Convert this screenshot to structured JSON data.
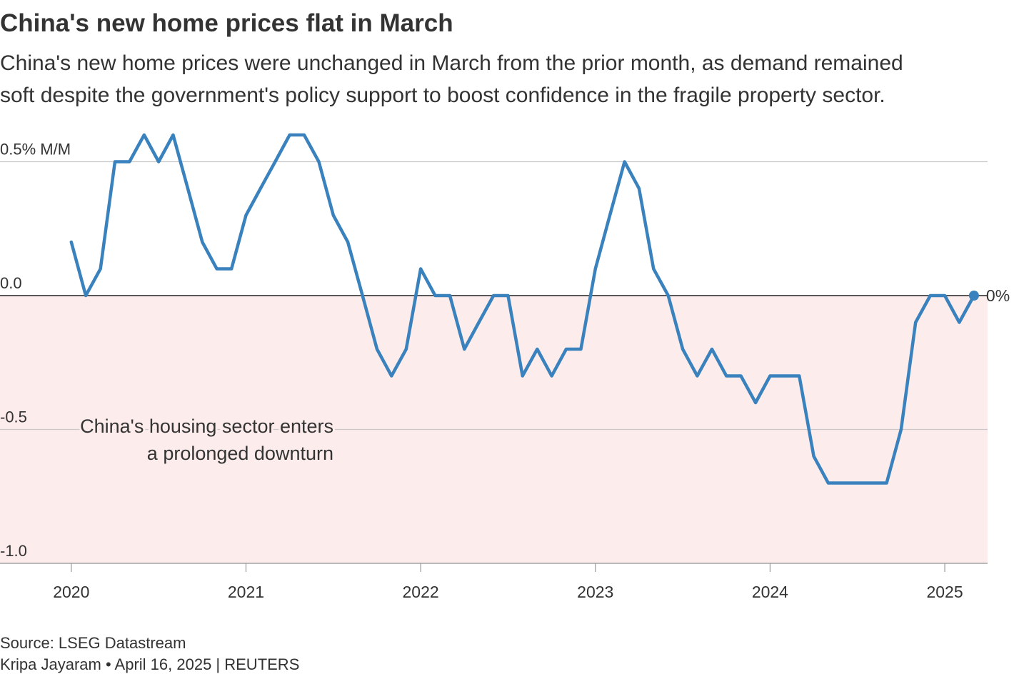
{
  "chart_data": {
    "type": "line",
    "title": "China's new home prices flat in March",
    "subtitle": [
      "China's new home prices were unchanged in March from the prior month, as demand remained",
      "soft despite the government's policy support to boost confidence in the fragile property sector."
    ],
    "x": [
      2020,
      2020.083,
      2020.167,
      2020.25,
      2020.333,
      2020.417,
      2020.5,
      2020.583,
      2020.667,
      2020.75,
      2020.833,
      2020.917,
      2021,
      2021.083,
      2021.167,
      2021.25,
      2021.333,
      2021.417,
      2021.5,
      2021.583,
      2021.667,
      2021.75,
      2021.833,
      2021.917,
      2022,
      2022.083,
      2022.167,
      2022.25,
      2022.333,
      2022.417,
      2022.5,
      2022.583,
      2022.667,
      2022.75,
      2022.833,
      2022.917,
      2023,
      2023.083,
      2023.167,
      2023.25,
      2023.333,
      2023.417,
      2023.5,
      2023.583,
      2023.667,
      2023.75,
      2023.833,
      2023.917,
      2024,
      2024.083,
      2024.167,
      2024.25,
      2024.333,
      2024.417,
      2024.5,
      2024.583,
      2024.667,
      2024.75,
      2024.833,
      2024.917,
      2025,
      2025.083,
      2025.167
    ],
    "values": [
      0.2,
      0.0,
      0.1,
      0.5,
      0.5,
      0.6,
      0.5,
      0.6,
      0.4,
      0.2,
      0.1,
      0.1,
      0.3,
      0.4,
      0.5,
      0.6,
      0.6,
      0.5,
      0.3,
      0.2,
      0.0,
      -0.2,
      -0.3,
      -0.2,
      0.1,
      0.0,
      0.0,
      -0.2,
      -0.1,
      0.0,
      0.0,
      -0.3,
      -0.2,
      -0.3,
      -0.2,
      -0.2,
      0.1,
      0.3,
      0.5,
      0.4,
      0.1,
      0.0,
      -0.2,
      -0.3,
      -0.2,
      -0.3,
      -0.3,
      -0.4,
      -0.3,
      -0.3,
      -0.3,
      -0.6,
      -0.7,
      -0.7,
      -0.7,
      -0.7,
      -0.7,
      -0.5,
      -0.1,
      0.0,
      0.0,
      -0.1,
      0.0
    ],
    "color": "#3a82bd",
    "end_label": "0%",
    "xlim": [
      2019.592,
      2025.245
    ],
    "xticks": [
      2020,
      2021,
      2022,
      2023,
      2024,
      2025
    ],
    "ylim": [
      -1.0,
      0.6
    ],
    "yticks": [
      {
        "value": -1.0,
        "label": "-1.0"
      },
      -0.5,
      {
        "value": 0,
        "label": "0.0"
      },
      {
        "value": 0.5,
        "label": "0.5% M/M"
      }
    ],
    "grid": true,
    "annotation": [
      "China's housing sector enters",
      "a prolonged downturn"
    ],
    "source": "Source: LSEG Datastream",
    "byline": "Kripa Jayaram • April 16, 2025 | REUTERS"
  }
}
